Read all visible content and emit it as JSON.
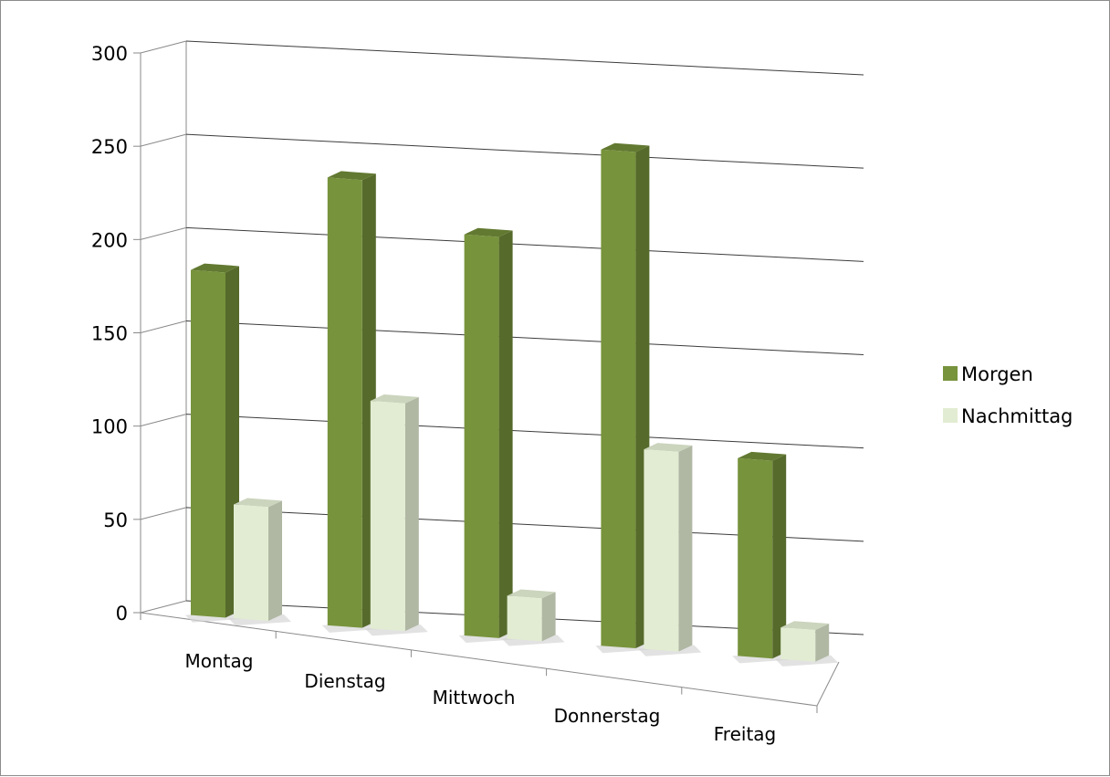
{
  "chart_data": {
    "type": "bar",
    "categories": [
      "Montag",
      "Dienstag",
      "Mittwoch",
      "Donnerstag",
      "Freitag"
    ],
    "series": [
      {
        "name": "Morgen",
        "values": [
          185,
          240,
          215,
          266,
          106
        ],
        "color": "#77933c"
      },
      {
        "name": "Nachmittag",
        "values": [
          61,
          122,
          23,
          107,
          17
        ],
        "color": "#e2ecd2"
      }
    ],
    "y_ticks": [
      0,
      50,
      100,
      150,
      200,
      250,
      300
    ],
    "ylim": [
      0,
      300
    ],
    "grid": true,
    "legend_position": "right",
    "style": "3d-clustered-column"
  }
}
